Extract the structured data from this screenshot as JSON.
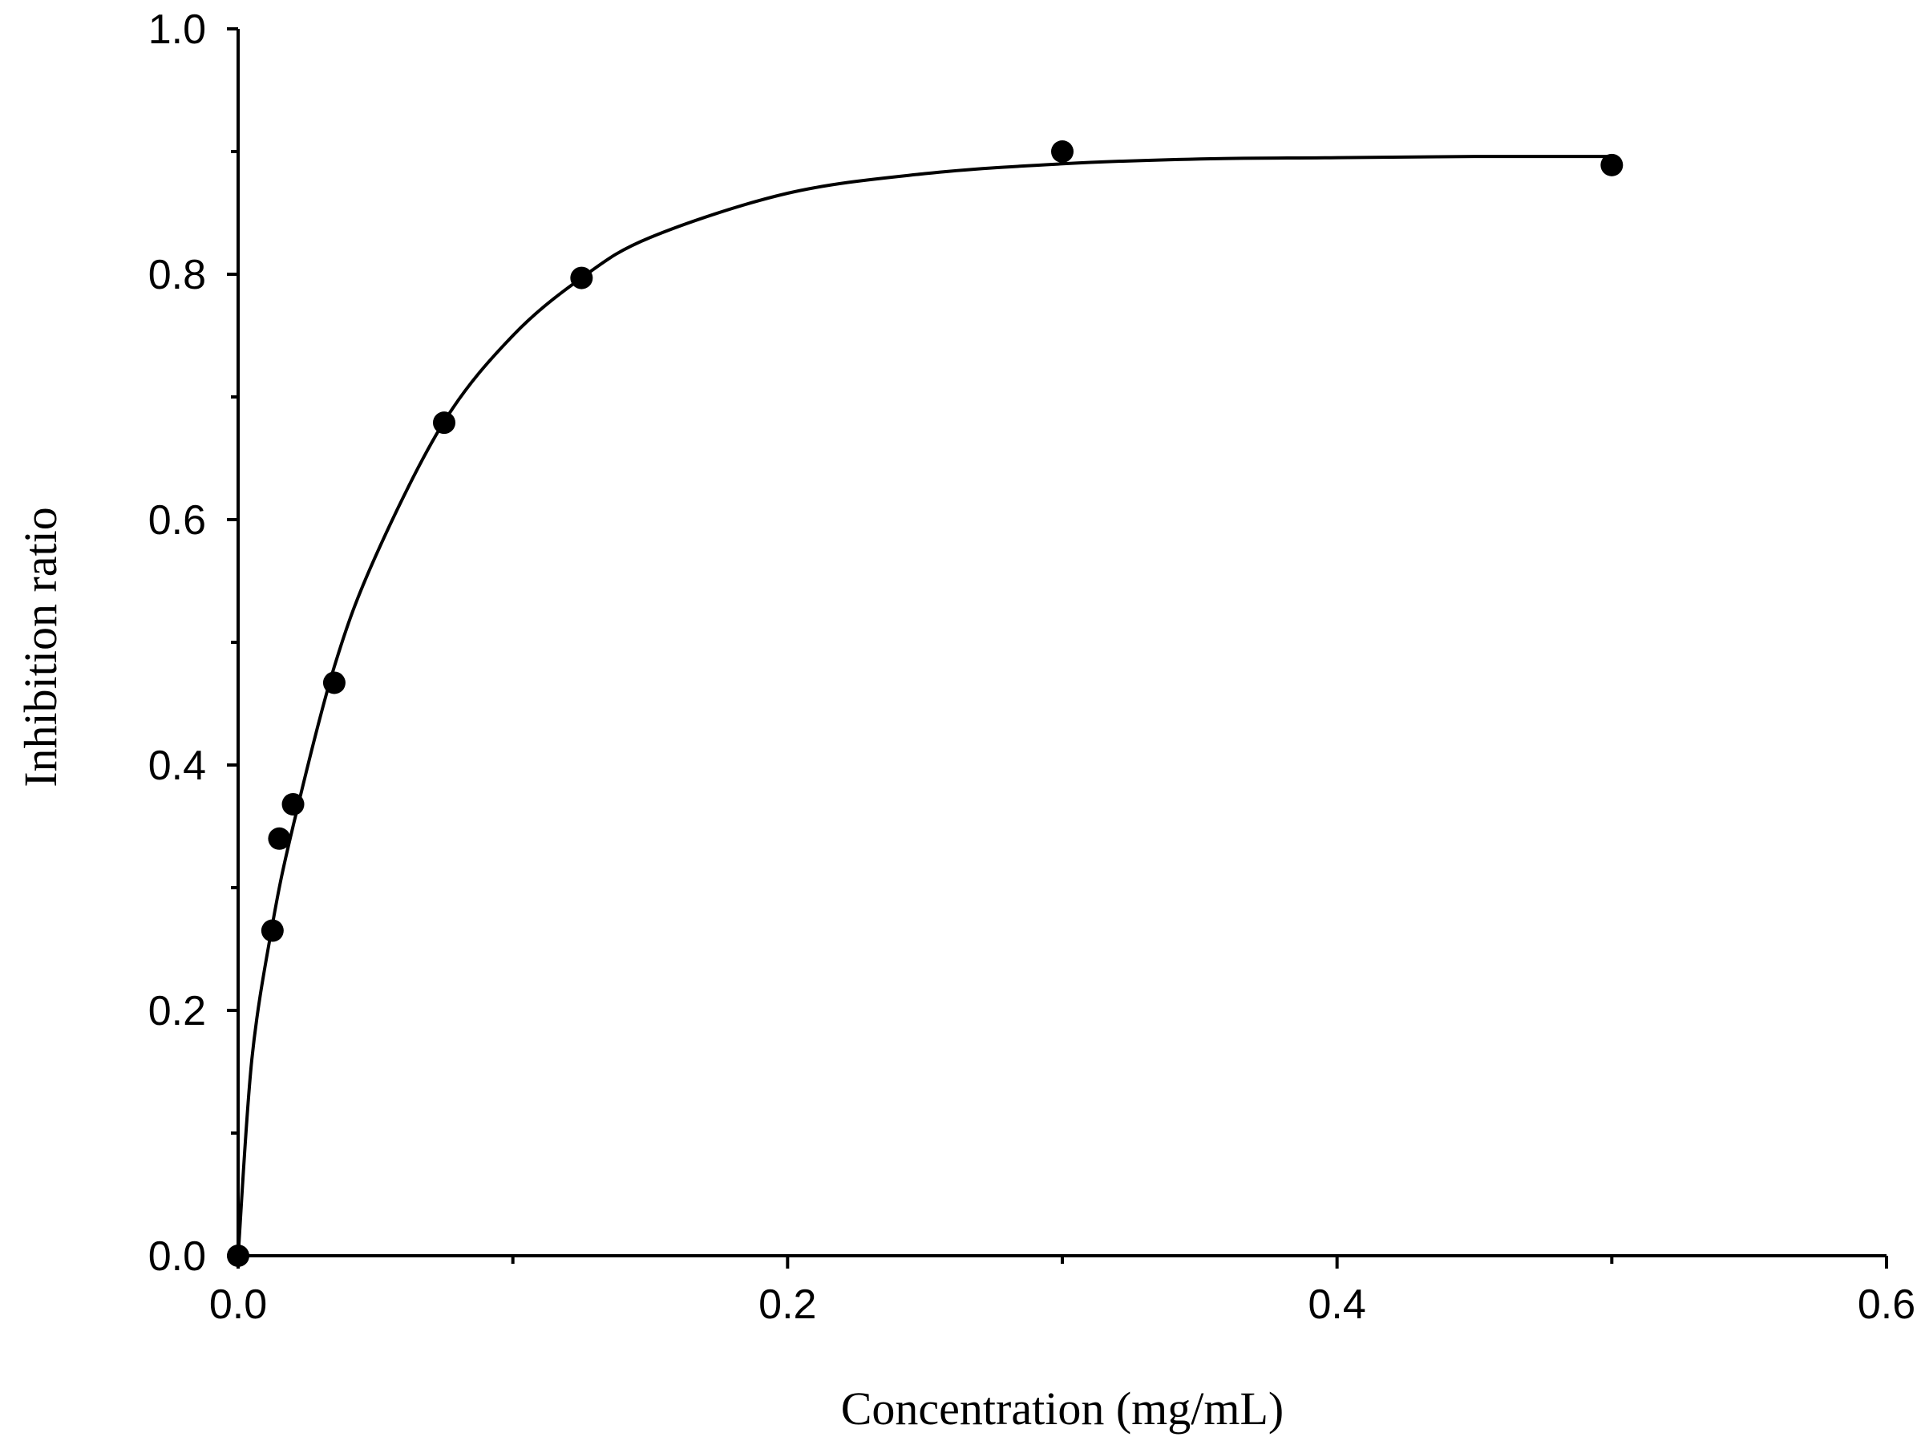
{
  "chart_data": {
    "type": "scatter",
    "title": "",
    "xlabel": "Concentration (mg/mL)",
    "ylabel": "Inhibition ratio",
    "xlim": [
      0.0,
      0.6
    ],
    "ylim": [
      0.0,
      1.0
    ],
    "x_ticks": [
      "0.0",
      "0.2",
      "0.4",
      "0.6"
    ],
    "y_ticks": [
      "0.0",
      "0.2",
      "0.4",
      "0.6",
      "0.8",
      "1.0"
    ],
    "x_minor_ticks": [
      0.1,
      0.3,
      0.5
    ],
    "y_minor_ticks": [
      0.1,
      0.3,
      0.5,
      0.7,
      0.9
    ],
    "grid": false,
    "legend": "none",
    "series": [
      {
        "marker": "filled-circle",
        "color": "#000000",
        "x": [
          0.0,
          0.0125,
          0.015,
          0.02,
          0.035,
          0.075,
          0.125,
          0.3,
          0.5
        ],
        "y": [
          0.0,
          0.265,
          0.34,
          0.368,
          0.467,
          0.679,
          0.797,
          0.9,
          0.889
        ]
      }
    ],
    "fit_curve": {
      "style": "solid",
      "color": "#000000",
      "x": [
        0.0,
        0.005,
        0.0125,
        0.02,
        0.035,
        0.05,
        0.075,
        0.1,
        0.125,
        0.15,
        0.2,
        0.25,
        0.3,
        0.35,
        0.4,
        0.45,
        0.5
      ],
      "y": [
        0.0,
        0.16,
        0.27,
        0.35,
        0.48,
        0.57,
        0.68,
        0.75,
        0.797,
        0.83,
        0.866,
        0.882,
        0.89,
        0.894,
        0.895,
        0.896,
        0.896
      ]
    }
  }
}
